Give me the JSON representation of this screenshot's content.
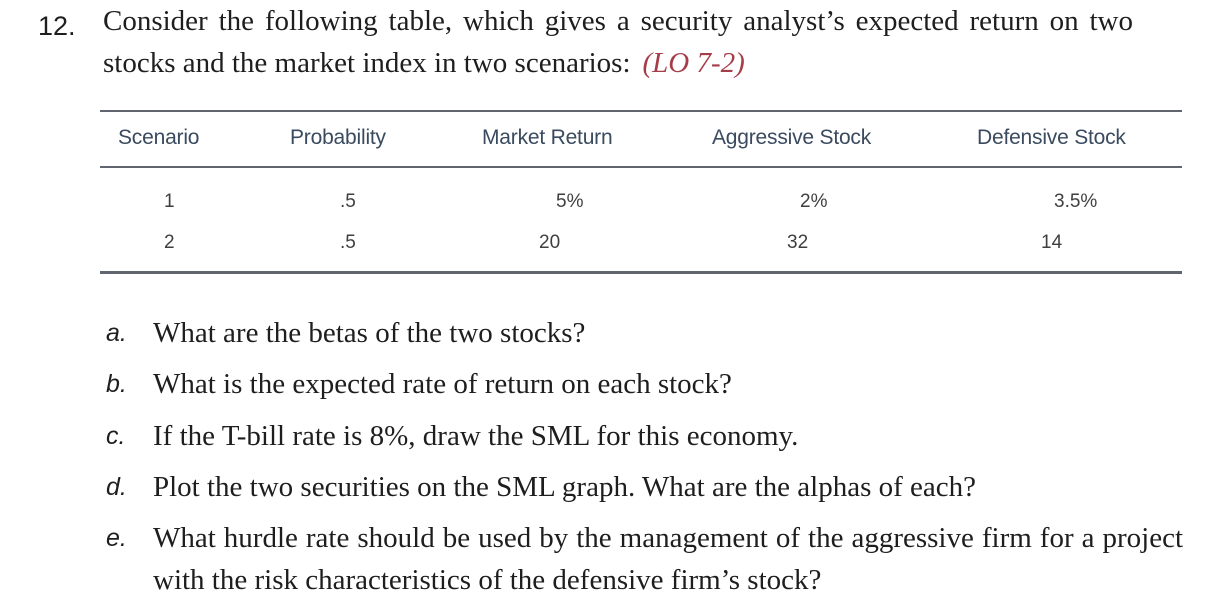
{
  "question": {
    "number": "12.",
    "text": "Consider the following table, which gives a security analyst’s expected return on two stocks and the market index in two scenarios:",
    "learning_objective": "(LO 7-2)"
  },
  "table": {
    "headers": [
      "Scenario",
      "Probability",
      "Market Return",
      "Aggressive Stock",
      "Defensive Stock"
    ],
    "rows": [
      [
        "1",
        ".5",
        "5%",
        "2%",
        "3.5%"
      ],
      [
        "2",
        ".5",
        "20",
        "32",
        "14"
      ]
    ]
  },
  "parts": [
    {
      "letter": "a.",
      "text": "What are the betas of the two stocks?"
    },
    {
      "letter": "b.",
      "text": "What is the expected rate of return on each stock?"
    },
    {
      "letter": "c.",
      "text": "If the T-bill rate is 8%, draw the SML for this economy."
    },
    {
      "letter": "d.",
      "text": "Plot the two securities on the SML graph. What are the alphas of each?"
    },
    {
      "letter": "e.",
      "text": "What hurdle rate should be used by the management of the aggressive firm for a project with the risk characteristics of the defensive firm’s stock?"
    }
  ]
}
